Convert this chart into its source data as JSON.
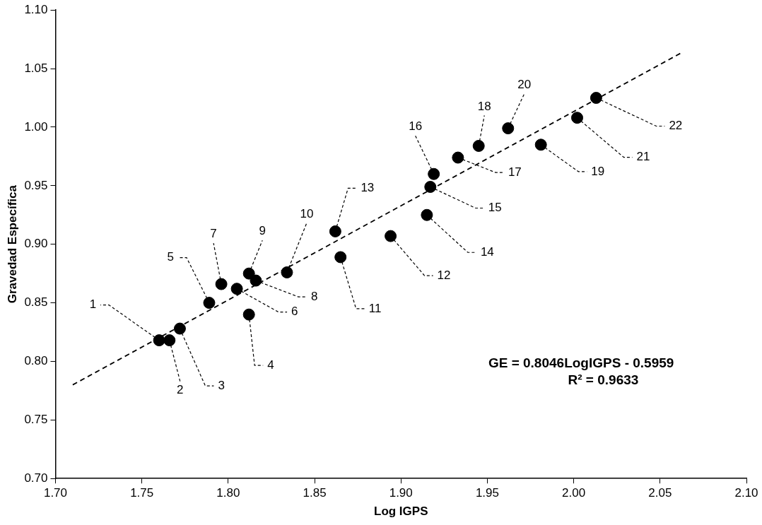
{
  "chart_data": {
    "type": "scatter",
    "xlabel": "Log IGPS",
    "ylabel": "Gravedad Específica",
    "marker": "circle",
    "xlim": [
      1.7,
      2.1
    ],
    "xticks": [
      {
        "value": 1.7,
        "label": "1.70"
      },
      {
        "value": 1.75,
        "label": "1.75"
      },
      {
        "value": 1.8,
        "label": "1.80"
      },
      {
        "value": 1.85,
        "label": "1.85"
      },
      {
        "value": 1.9,
        "label": "1.90"
      },
      {
        "value": 1.95,
        "label": "1.95"
      },
      {
        "value": 2.0,
        "label": "2.00"
      },
      {
        "value": 2.05,
        "label": "2.05"
      },
      {
        "value": 2.1,
        "label": "2.10"
      }
    ],
    "ylim": [
      0.7,
      1.1
    ],
    "yticks": [
      {
        "value": 0.7,
        "label": "0.70"
      },
      {
        "value": 0.75,
        "label": "0.75"
      },
      {
        "value": 0.8,
        "label": "0.80"
      },
      {
        "value": 0.85,
        "label": "0.85"
      },
      {
        "value": 0.9,
        "label": "0.90"
      },
      {
        "value": 0.95,
        "label": "0.95"
      },
      {
        "value": 1.0,
        "label": "1.00"
      },
      {
        "value": 1.05,
        "label": "1.05"
      },
      {
        "value": 1.1,
        "label": "1.10"
      }
    ],
    "series": [
      {
        "type": "scatter",
        "color": "#000000",
        "x": [
          1.76,
          1.766,
          1.772,
          1.812,
          1.789,
          1.805,
          1.796,
          1.816,
          1.812,
          1.834,
          1.865,
          1.894,
          1.862,
          1.915,
          1.917,
          1.919,
          1.933,
          1.945,
          1.981,
          1.962,
          2.002,
          2.013
        ],
        "values": [
          0.818,
          0.818,
          0.828,
          0.84,
          0.85,
          0.862,
          0.866,
          0.869,
          0.875,
          0.876,
          0.889,
          0.907,
          0.911,
          0.925,
          0.949,
          0.96,
          0.974,
          0.984,
          0.985,
          0.999,
          1.008,
          1.025
        ]
      },
      {
        "type": "line",
        "color": "#000000",
        "line_style": "dashed",
        "marker": "none",
        "x": [
          1.71,
          2.063
        ],
        "values": [
          0.78,
          1.064
        ]
      }
    ],
    "annotations": [
      {
        "text": "1",
        "x": 1.76,
        "y": 0.818
      },
      {
        "text": "2",
        "x": 1.766,
        "y": 0.818
      },
      {
        "text": "3",
        "x": 1.772,
        "y": 0.828
      },
      {
        "text": "4",
        "x": 1.812,
        "y": 0.84
      },
      {
        "text": "5",
        "x": 1.789,
        "y": 0.85
      },
      {
        "text": "6",
        "x": 1.805,
        "y": 0.862
      },
      {
        "text": "7",
        "x": 1.796,
        "y": 0.866
      },
      {
        "text": "8",
        "x": 1.816,
        "y": 0.869
      },
      {
        "text": "9",
        "x": 1.812,
        "y": 0.875
      },
      {
        "text": "10",
        "x": 1.834,
        "y": 0.876
      },
      {
        "text": "11",
        "x": 1.865,
        "y": 0.889
      },
      {
        "text": "12",
        "x": 1.894,
        "y": 0.907
      },
      {
        "text": "13",
        "x": 1.862,
        "y": 0.911
      },
      {
        "text": "14",
        "x": 1.915,
        "y": 0.925
      },
      {
        "text": "15",
        "x": 1.917,
        "y": 0.949
      },
      {
        "text": "16",
        "x": 1.919,
        "y": 0.96
      },
      {
        "text": "17",
        "x": 1.933,
        "y": 0.974
      },
      {
        "text": "18",
        "x": 1.945,
        "y": 0.984
      },
      {
        "text": "19",
        "x": 1.981,
        "y": 0.985
      },
      {
        "text": "20",
        "x": 1.962,
        "y": 0.999
      },
      {
        "text": "21",
        "x": 2.002,
        "y": 1.008
      },
      {
        "text": "22",
        "x": 2.013,
        "y": 1.025
      },
      "GE = 0.8046LogIGPS - 0.5959",
      "R² = 0.9633"
    ]
  }
}
